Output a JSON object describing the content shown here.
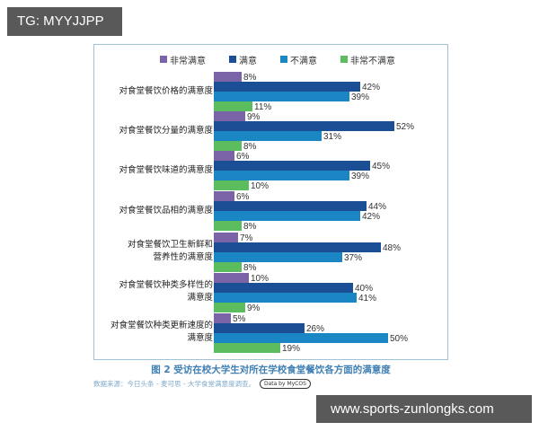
{
  "watermarks": {
    "top": "TG: MYYJJPP",
    "bottom": "www.sports-zunlongks.com"
  },
  "legend": [
    {
      "label": "非常满意",
      "color": "#7b63a8"
    },
    {
      "label": "满意",
      "color": "#1a4f96"
    },
    {
      "label": "不满意",
      "color": "#1a86c4"
    },
    {
      "label": "非常不满意",
      "color": "#5cbd5f"
    }
  ],
  "caption": "图 2  受访在校大学生对所在学校食堂餐饮各方面的满意度",
  "source": {
    "text": "数据来源：今日头条 - 麦可思 - 大学食堂满意度调查。",
    "badge": "Data by MyCOS"
  },
  "groups": [
    {
      "label_lines": [
        "对食堂餐饮价格的满意度"
      ],
      "values": [
        "8%",
        "42%",
        "39%",
        "11%"
      ]
    },
    {
      "label_lines": [
        "对食堂餐饮分量的满意度"
      ],
      "values": [
        "9%",
        "52%",
        "31%",
        "8%"
      ]
    },
    {
      "label_lines": [
        "对食堂餐饮味道的满意度"
      ],
      "values": [
        "6%",
        "45%",
        "39%",
        "10%"
      ]
    },
    {
      "label_lines": [
        "对食堂餐饮品相的满意度"
      ],
      "values": [
        "6%",
        "44%",
        "42%",
        "8%"
      ]
    },
    {
      "label_lines": [
        "对食堂餐饮卫生新鲜和",
        "营养性的满意度"
      ],
      "values": [
        "7%",
        "48%",
        "37%",
        "8%"
      ]
    },
    {
      "label_lines": [
        "对食堂餐饮种类多样性的",
        "满意度"
      ],
      "values": [
        "10%",
        "40%",
        "41%",
        "9%"
      ]
    },
    {
      "label_lines": [
        "对食堂餐饮种类更新速度的",
        "满意度"
      ],
      "values": [
        "5%",
        "26%",
        "50%",
        "19%"
      ]
    }
  ],
  "chart_data": {
    "type": "bar",
    "orientation": "horizontal",
    "title": "图 2  受访在校大学生对所在学校食堂餐饮各方面的满意度",
    "categories": [
      "对食堂餐饮价格的满意度",
      "对食堂餐饮分量的满意度",
      "对食堂餐饮味道的满意度",
      "对食堂餐饮品相的满意度",
      "对食堂餐饮卫生新鲜和营养性的满意度",
      "对食堂餐饮种类多样性的满意度",
      "对食堂餐饮种类更新速度的满意度"
    ],
    "series": [
      {
        "name": "非常满意",
        "color": "#7b63a8",
        "values": [
          8,
          9,
          6,
          6,
          7,
          10,
          5
        ]
      },
      {
        "name": "满意",
        "color": "#1a4f96",
        "values": [
          42,
          52,
          45,
          44,
          48,
          40,
          26
        ]
      },
      {
        "name": "不满意",
        "color": "#1a86c4",
        "values": [
          39,
          31,
          39,
          42,
          37,
          41,
          50
        ]
      },
      {
        "name": "非常不满意",
        "color": "#5cbd5f",
        "values": [
          11,
          8,
          10,
          8,
          8,
          9,
          19
        ]
      }
    ],
    "unit": "%",
    "xlabel": "",
    "ylabel": "",
    "grid": false,
    "legend_position": "top",
    "data_labels": true,
    "source": "数据来源：今日头条 - 麦可思 - 大学食堂满意度调查。"
  }
}
